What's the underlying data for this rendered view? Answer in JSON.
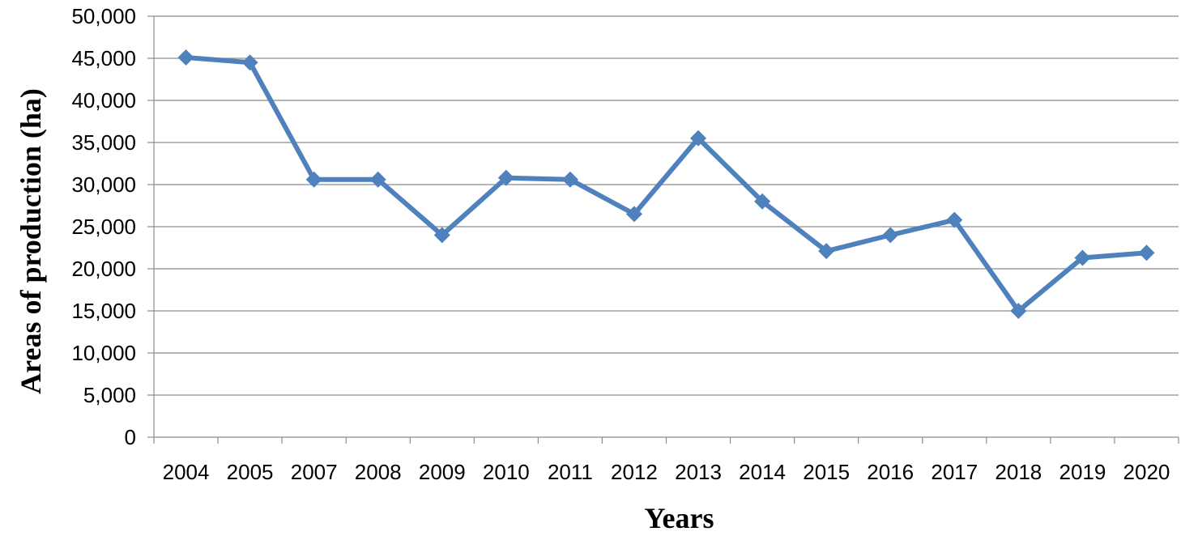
{
  "chart_data": {
    "type": "line",
    "title": "",
    "xlabel": "Years",
    "ylabel": "Areas of production (ha)",
    "categories": [
      "2004",
      "2005",
      "2007",
      "2008",
      "2009",
      "2010",
      "2011",
      "2012",
      "2013",
      "2014",
      "2015",
      "2016",
      "2017",
      "2018",
      "2019",
      "2020"
    ],
    "series": [
      {
        "values": [
          45100,
          44500,
          30600,
          30600,
          24000,
          30800,
          30600,
          26500,
          35500,
          28000,
          22100,
          24000,
          25800,
          15000,
          21300,
          21900
        ],
        "color": "#4f81bd",
        "marker": "diamond"
      }
    ],
    "ylim": [
      0,
      50000
    ],
    "yticks": [
      0,
      5000,
      10000,
      15000,
      20000,
      25000,
      30000,
      35000,
      40000,
      45000,
      50000
    ],
    "ytick_labels": [
      "0",
      "5,000",
      "10,000",
      "15,000",
      "20,000",
      "25,000",
      "30,000",
      "35,000",
      "40,000",
      "45,000",
      "50,000"
    ],
    "grid": true,
    "legend": "none"
  }
}
